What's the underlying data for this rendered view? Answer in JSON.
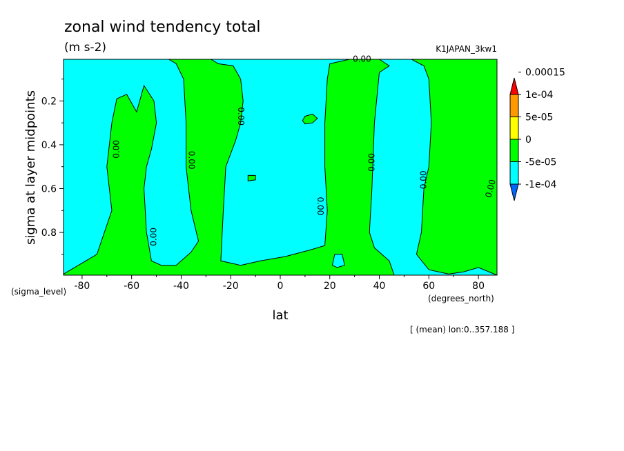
{
  "chart_data": {
    "type": "contour",
    "title": "zonal wind tendency total",
    "units": "(m s-2)",
    "dataset": "K1JAPAN_3kw1",
    "xlabel": "lat",
    "ylabel": "sigma at layer midpoints",
    "x_unit_label": "(degrees_north)",
    "y_unit_label": "(sigma_level)",
    "footnote": "[ (mean) lon:0..357.188 ]",
    "xlim": [
      -87.5,
      87.5
    ],
    "ylim": [
      0.995,
      0.01
    ],
    "x_ticks": [
      {
        "value": -80,
        "label": "-80"
      },
      {
        "value": -60,
        "label": "-60"
      },
      {
        "value": -40,
        "label": "-40"
      },
      {
        "value": -20,
        "label": "-20"
      },
      {
        "value": 0,
        "label": "0"
      },
      {
        "value": 20,
        "label": "20"
      },
      {
        "value": 40,
        "label": "40"
      },
      {
        "value": 60,
        "label": "60"
      },
      {
        "value": 80,
        "label": "80"
      }
    ],
    "y_ticks": [
      {
        "value": 0.2,
        "label": "0.2"
      },
      {
        "value": 0.4,
        "label": "0.4"
      },
      {
        "value": 0.6,
        "label": "0.6"
      },
      {
        "value": 0.8,
        "label": "0.8"
      }
    ],
    "background_level_color": "#00ffff",
    "positive_level_color": "#00ff00",
    "legend": {
      "placement": "right",
      "colors": [
        "#0066ff",
        "#00ffff",
        "#00ff00",
        "#ffff00",
        "#ff9900",
        "#ff0000"
      ],
      "labels": [
        "-1e-04",
        "-5e-05",
        "0",
        "5e-05",
        "1e-04",
        "0.00015"
      ]
    },
    "regions": [
      {
        "name": "band-sh-midlat",
        "points": [
          [
            -87.5,
            0.99
          ],
          [
            -74,
            0.9
          ],
          [
            -68,
            0.7
          ],
          [
            -70,
            0.5
          ],
          [
            -68,
            0.3
          ],
          [
            -66,
            0.19
          ],
          [
            -62,
            0.17
          ],
          [
            -58,
            0.25
          ],
          [
            -55,
            0.13
          ],
          [
            -51,
            0.2
          ],
          [
            -50,
            0.3
          ],
          [
            -52,
            0.42
          ],
          [
            -54,
            0.5
          ],
          [
            -55,
            0.6
          ],
          [
            -54,
            0.8
          ],
          [
            -52,
            0.93
          ],
          [
            -48,
            0.95
          ],
          [
            -42,
            0.95
          ],
          [
            -36,
            0.89
          ],
          [
            -33,
            0.84
          ],
          [
            -36,
            0.7
          ],
          [
            -38,
            0.5
          ],
          [
            -38,
            0.3
          ],
          [
            -39,
            0.1
          ],
          [
            -42,
            0.03
          ],
          [
            -45,
            0.01
          ],
          [
            -28,
            0.01
          ],
          [
            -25,
            0.03
          ],
          [
            -19,
            0.04
          ],
          [
            -16,
            0.1
          ],
          [
            -15,
            0.2
          ],
          [
            -16,
            0.3
          ],
          [
            -18,
            0.38
          ],
          [
            -22,
            0.5
          ],
          [
            -23,
            0.7
          ],
          [
            -24,
            0.93
          ],
          [
            -16,
            0.95
          ],
          [
            -8,
            0.93
          ],
          [
            2,
            0.91
          ],
          [
            12,
            0.88
          ],
          [
            18,
            0.86
          ],
          [
            19,
            0.7
          ],
          [
            18,
            0.5
          ],
          [
            18,
            0.3
          ],
          [
            19,
            0.1
          ],
          [
            20,
            0.03
          ],
          [
            28,
            0.01
          ],
          [
            40,
            0.01
          ],
          [
            44,
            0.04
          ],
          [
            40,
            0.07
          ],
          [
            38,
            0.3
          ],
          [
            37,
            0.6
          ],
          [
            36,
            0.8
          ],
          [
            38,
            0.87
          ],
          [
            44,
            0.93
          ],
          [
            46,
            0.995
          ],
          [
            -87.5,
            0.995
          ]
        ]
      },
      {
        "name": "band-nh-polar",
        "points": [
          [
            53,
            0.01
          ],
          [
            87.5,
            0.01
          ],
          [
            87.5,
            0.995
          ],
          [
            80,
            0.96
          ],
          [
            74,
            0.98
          ],
          [
            68,
            0.99
          ],
          [
            60,
            0.97
          ],
          [
            55,
            0.9
          ],
          [
            57,
            0.8
          ],
          [
            58,
            0.6
          ],
          [
            60,
            0.5
          ],
          [
            61,
            0.3
          ],
          [
            60,
            0.1
          ],
          [
            58,
            0.04
          ]
        ]
      },
      {
        "name": "patch-15n-0.3",
        "points": [
          [
            9,
            0.29
          ],
          [
            10,
            0.27
          ],
          [
            13,
            0.26
          ],
          [
            15,
            0.28
          ],
          [
            13,
            0.3
          ],
          [
            10,
            0.305
          ]
        ]
      },
      {
        "name": "patch-10s-0.55",
        "points": [
          [
            -13,
            0.54
          ],
          [
            -10,
            0.54
          ],
          [
            -10,
            0.56
          ],
          [
            -13,
            0.565
          ]
        ]
      }
    ],
    "holes": [
      {
        "name": "hole-20n-bottom",
        "points": [
          [
            21,
            0.95
          ],
          [
            22,
            0.9
          ],
          [
            25,
            0.9
          ],
          [
            26,
            0.95
          ],
          [
            23,
            0.96
          ]
        ]
      }
    ],
    "contour_labels": [
      {
        "text": "0.00",
        "x": -66,
        "y": 0.42,
        "angle": -90
      },
      {
        "text": "0.00",
        "x": -51,
        "y": 0.82,
        "angle": -90
      },
      {
        "text": "0.00",
        "x": -36,
        "y": 0.47,
        "angle": 90
      },
      {
        "text": "0.00",
        "x": -16,
        "y": 0.27,
        "angle": 90
      },
      {
        "text": "0.00",
        "x": 16,
        "y": 0.68,
        "angle": 90
      },
      {
        "text": "0.00",
        "x": 37,
        "y": 0.48,
        "angle": -90
      },
      {
        "text": "0.00",
        "x": 58,
        "y": 0.56,
        "angle": -90
      },
      {
        "text": "0.00",
        "x": 85,
        "y": 0.6,
        "angle": -75
      },
      {
        "text": "0.00",
        "x": 33,
        "y": 0.01,
        "angle": 0
      }
    ]
  }
}
